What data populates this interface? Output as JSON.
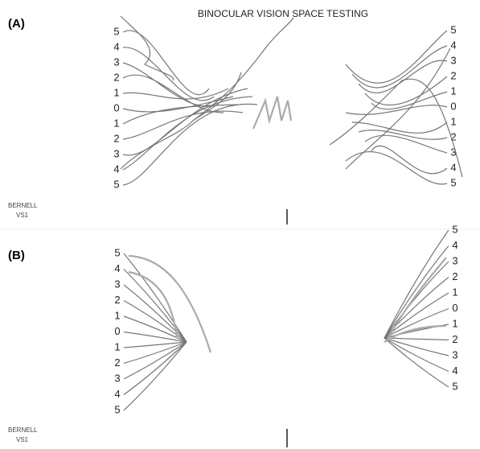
{
  "panels": [
    {
      "label": "(A)",
      "title": "BINOCULAR VISION SPACE TESTING",
      "left_scale": [
        5,
        4,
        3,
        2,
        1,
        0,
        1,
        2,
        3,
        4,
        5
      ],
      "right_scale": [
        5,
        4,
        3,
        2,
        1,
        0,
        1,
        2,
        3,
        4,
        5
      ],
      "device": [
        "BERNELL",
        "VS1"
      ]
    },
    {
      "label": "(B)",
      "left_scale": [
        5,
        4,
        3,
        2,
        1,
        0,
        1,
        2,
        3,
        4,
        5
      ],
      "right_scale": [
        5,
        4,
        3,
        2,
        1,
        0,
        1,
        2,
        3,
        4,
        5
      ],
      "device": [
        "BERNELL",
        "VS1"
      ]
    }
  ]
}
